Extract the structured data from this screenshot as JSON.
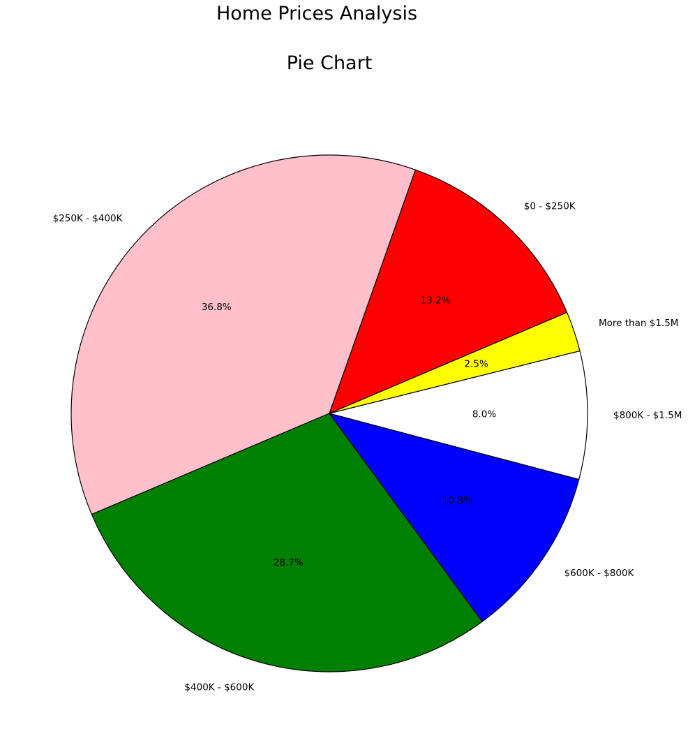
{
  "figure": {
    "suptitle": "Home Prices Analysis"
  },
  "chart_data": {
    "type": "pie",
    "title": "Pie Chart",
    "slices": [
      {
        "label": "$0 - $250K",
        "value": 13.2,
        "pct_label": "13.2%",
        "color": "#ff0000"
      },
      {
        "label": "$250K - $400K",
        "value": 36.8,
        "pct_label": "36.8%",
        "color": "#ffc0cb"
      },
      {
        "label": "$400K - $600K",
        "value": 28.7,
        "pct_label": "28.7%",
        "color": "#008000"
      },
      {
        "label": "$600K - $800K",
        "value": 10.8,
        "pct_label": "10.8%",
        "color": "#0000ff"
      },
      {
        "label": "$800K - $1.5M",
        "value": 8.0,
        "pct_label": "8.0%",
        "color": "#ffffff"
      },
      {
        "label": "More than $1.5M",
        "value": 2.5,
        "pct_label": "2.5%",
        "color": "#ffff00"
      }
    ],
    "start_angle_deg": 23,
    "direction": "counterclockwise",
    "edge_color": "#000000"
  }
}
